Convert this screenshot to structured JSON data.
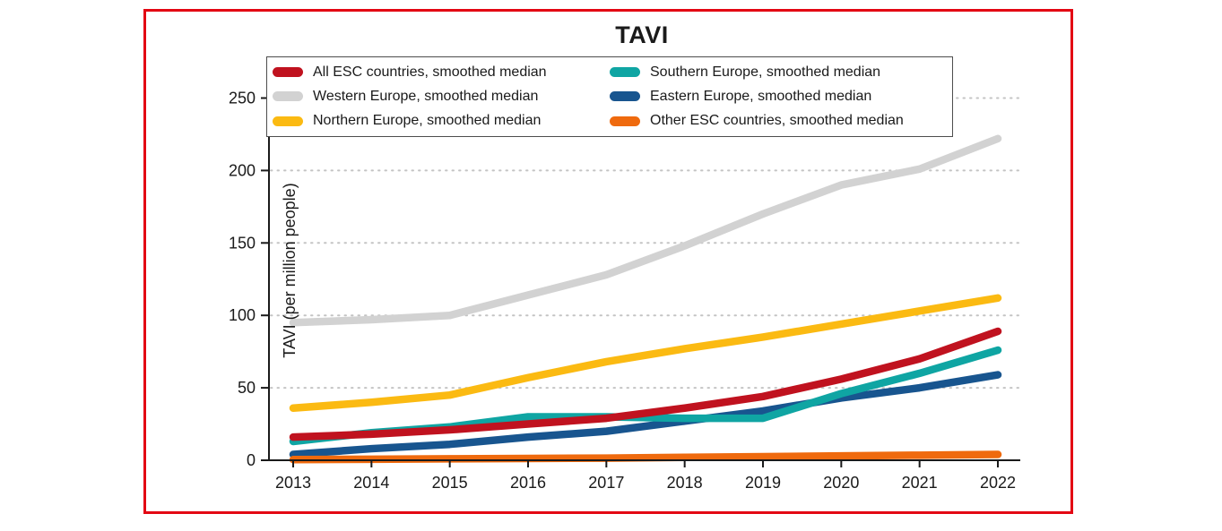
{
  "frame": {
    "border_color": "#e30613"
  },
  "chart_data": {
    "type": "line",
    "title": "TAVI",
    "ylabel": "TAVI (per million people)",
    "xlabel": "",
    "x": [
      2013,
      2014,
      2015,
      2016,
      2017,
      2018,
      2019,
      2020,
      2021,
      2022
    ],
    "ylim": [
      0,
      250
    ],
    "yticks": [
      0,
      50,
      100,
      150,
      200,
      250
    ],
    "grid": "dashed-horizontal",
    "legend_position": "top-inside-box",
    "series": [
      {
        "name": "All ESC countries, smoothed median",
        "color": "#c0121f",
        "values": [
          16,
          18,
          21,
          25,
          29,
          36,
          44,
          56,
          70,
          89
        ]
      },
      {
        "name": "Western Europe, smoothed median",
        "color": "#d2d2d2",
        "values": [
          95,
          97,
          100,
          114,
          128,
          148,
          170,
          190,
          201,
          222
        ]
      },
      {
        "name": "Northern Europe, smoothed median",
        "color": "#fbba12",
        "values": [
          36,
          40,
          45,
          57,
          68,
          77,
          85,
          94,
          103,
          112
        ]
      },
      {
        "name": "Southern Europe, smoothed median",
        "color": "#0fa5a3",
        "values": [
          13,
          19,
          23,
          30,
          30,
          29,
          29,
          46,
          60,
          76
        ]
      },
      {
        "name": "Eastern Europe, smoothed median",
        "color": "#18558f",
        "values": [
          4,
          8,
          11,
          16,
          20,
          27,
          34,
          43,
          50,
          59
        ]
      },
      {
        "name": "Other ESC countries, smoothed median",
        "color": "#ef6a0e",
        "values": [
          0.5,
          0.7,
          1,
          1.2,
          1.5,
          2,
          2.5,
          3,
          3.5,
          4
        ]
      }
    ]
  }
}
